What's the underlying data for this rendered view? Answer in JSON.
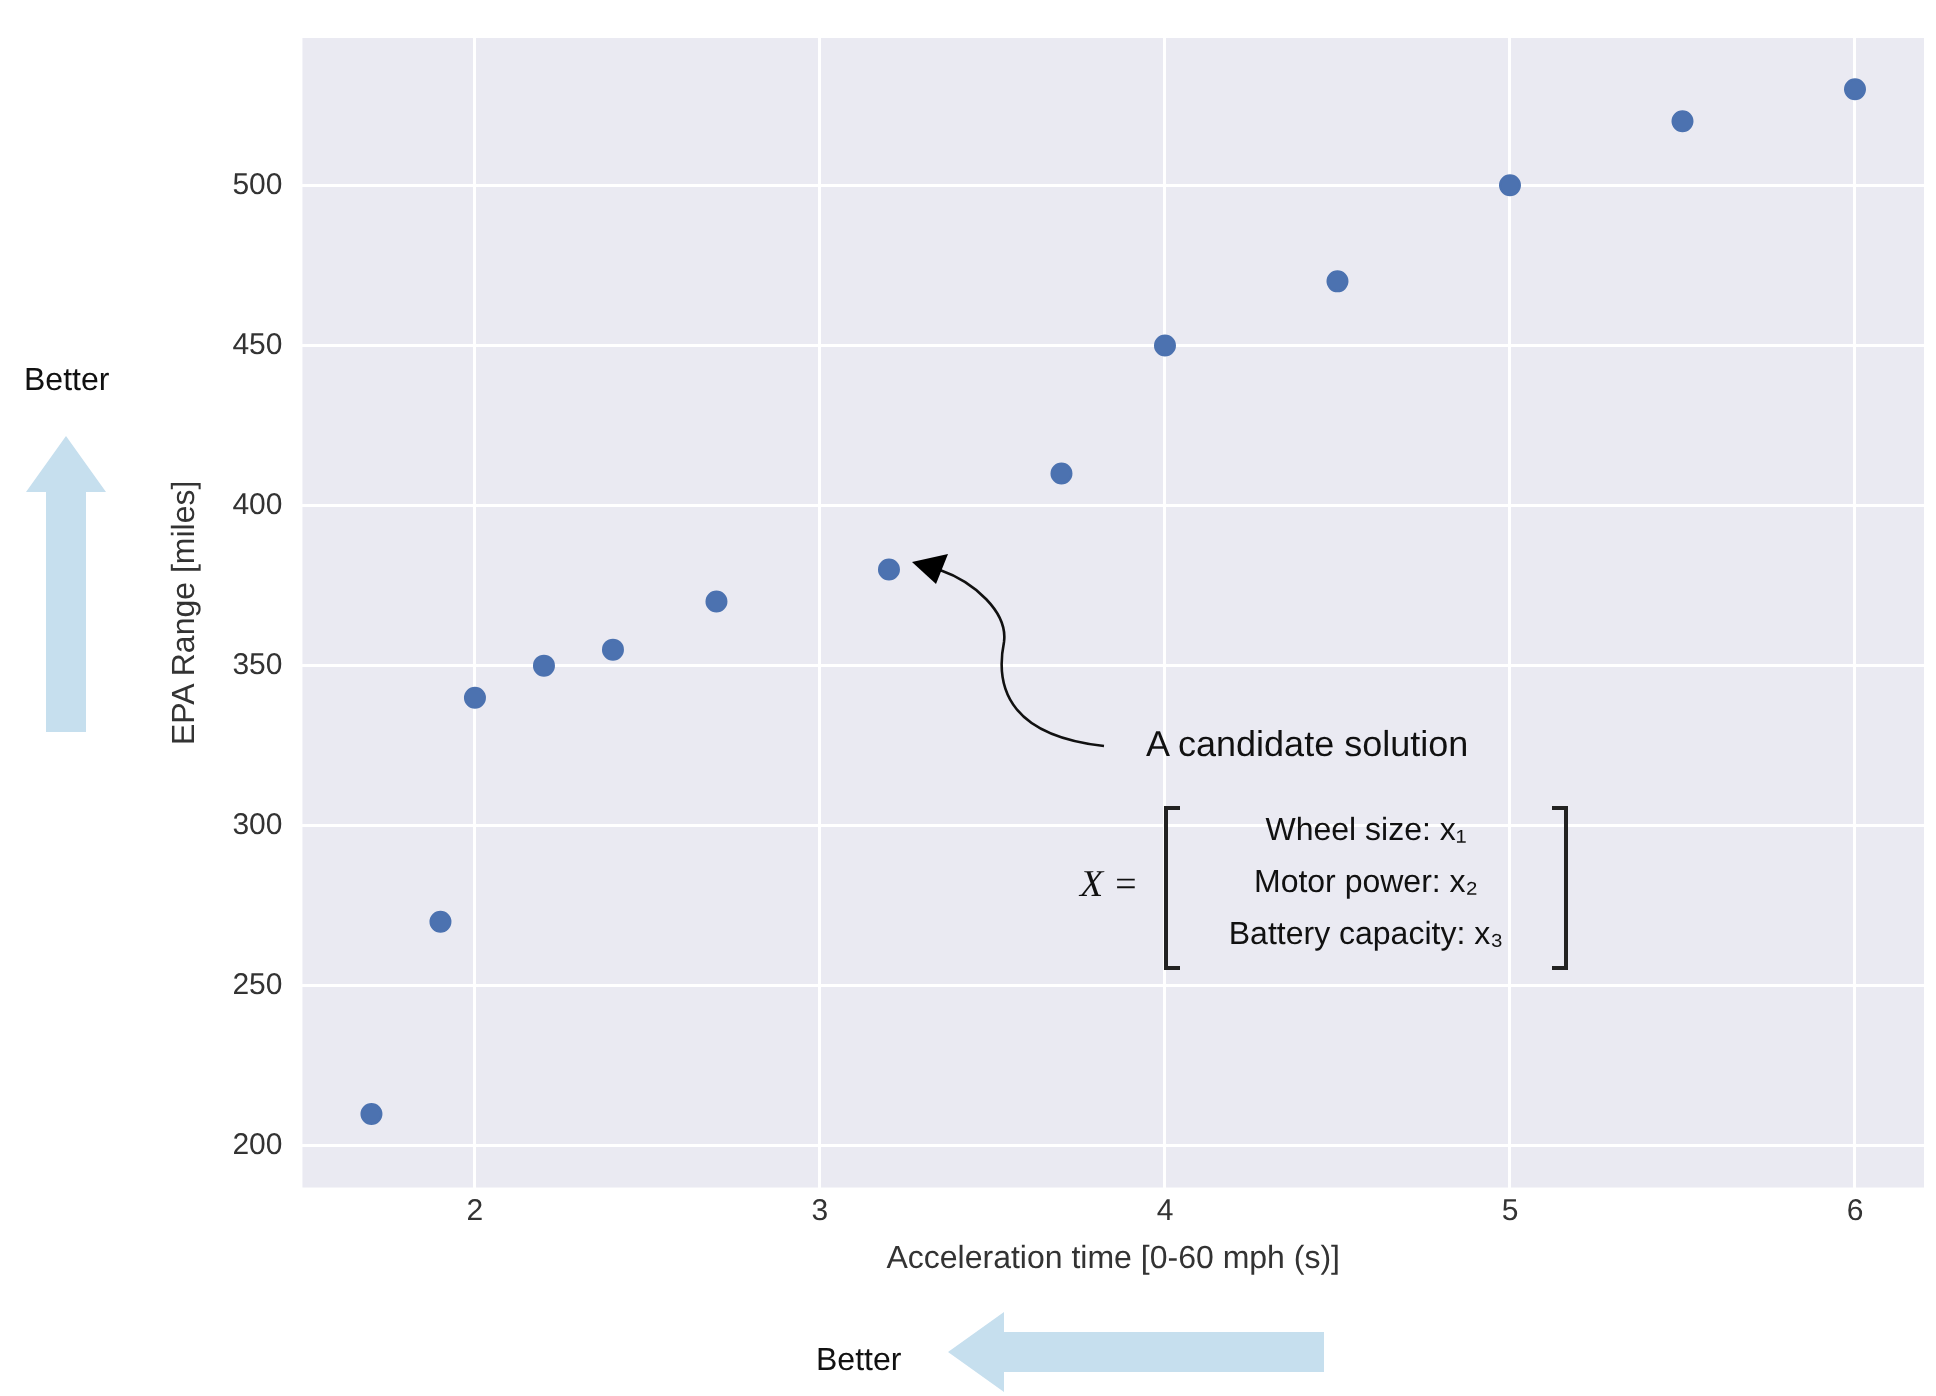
{
  "chart_data": {
    "type": "scatter",
    "xlabel": "Acceleration time [0-60 mph (s)]",
    "ylabel": "EPA Range [miles]",
    "x": [
      1.7,
      1.9,
      2.0,
      2.2,
      2.4,
      2.7,
      3.2,
      3.7,
      4.0,
      4.5,
      5.0,
      5.5,
      6.0
    ],
    "series": [
      {
        "color": "#4c72b0",
        "values": [
          210,
          270,
          340,
          350,
          355,
          370,
          380,
          410,
          450,
          470,
          500,
          520,
          530
        ]
      }
    ],
    "xlim": [
      1.5,
      6.2
    ],
    "xticks": [
      2,
      3,
      4,
      5,
      6
    ],
    "ylim": [
      187,
      546
    ],
    "yticks": [
      200,
      250,
      300,
      350,
      400,
      450,
      500
    ],
    "grid": true,
    "legend": false,
    "marker": "circle",
    "annotations": [
      "A candidate solution",
      "X =",
      "Wheel size: x₁",
      "Motor power: x₂",
      "Battery capacity: x₃",
      "Better",
      "Better"
    ]
  }
}
